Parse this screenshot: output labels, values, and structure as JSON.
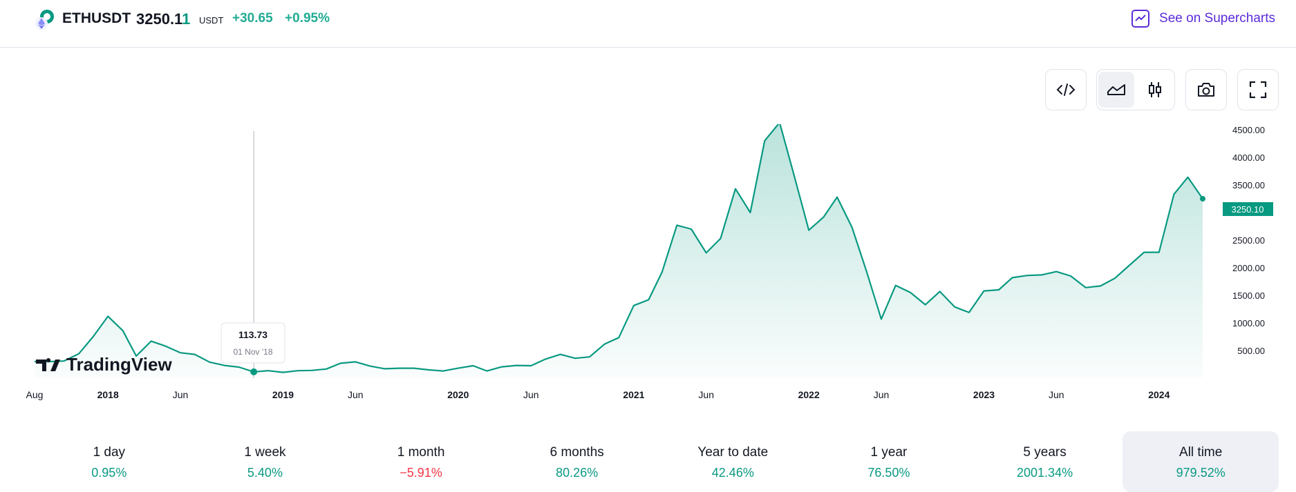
{
  "header": {
    "symbol": "ETHUSDT",
    "price_main": "3250.1",
    "price_last": "1",
    "currency": "USDT",
    "change": "+30.65",
    "change_pct": "+0.95%",
    "supercharts_label": "See on Supercharts"
  },
  "toolbar": {
    "embed_icon": "code-icon",
    "line_icon": "area-chart-icon",
    "candles_icon": "candlestick-icon",
    "snapshot_icon": "camera-icon",
    "fullscreen_icon": "fullscreen-icon"
  },
  "watermark": "TradingView",
  "tooltip": {
    "value": "113.73",
    "date": "01 Nov '18"
  },
  "current_price_label": "3250.10",
  "periods": [
    {
      "label": "1 day",
      "value": "0.95%",
      "sign": "pos"
    },
    {
      "label": "1 week",
      "value": "5.40%",
      "sign": "pos"
    },
    {
      "label": "1 month",
      "value": "−5.91%",
      "sign": "neg"
    },
    {
      "label": "6 months",
      "value": "80.26%",
      "sign": "pos"
    },
    {
      "label": "Year to date",
      "value": "42.46%",
      "sign": "pos"
    },
    {
      "label": "1 year",
      "value": "76.50%",
      "sign": "pos"
    },
    {
      "label": "5 years",
      "value": "2001.34%",
      "sign": "pos"
    },
    {
      "label": "All time",
      "value": "979.52%",
      "sign": "pos",
      "active": true
    }
  ],
  "colors": {
    "line": "#089981",
    "accent": "#5b2bd8",
    "negative": "#f23645"
  },
  "chart_data": {
    "type": "area",
    "x_ticks": [
      {
        "label": "Aug",
        "x": "2017-08-01",
        "bold": false
      },
      {
        "label": "2018",
        "x": "2018-01-01",
        "bold": true
      },
      {
        "label": "Jun",
        "x": "2018-06-01",
        "bold": false
      },
      {
        "label": "2019",
        "x": "2019-01-01",
        "bold": true
      },
      {
        "label": "Jun",
        "x": "2019-06-01",
        "bold": false
      },
      {
        "label": "2020",
        "x": "2020-01-01",
        "bold": true
      },
      {
        "label": "Jun",
        "x": "2020-06-01",
        "bold": false
      },
      {
        "label": "2021",
        "x": "2021-01-01",
        "bold": true
      },
      {
        "label": "Jun",
        "x": "2021-06-01",
        "bold": false
      },
      {
        "label": "2022",
        "x": "2022-01-01",
        "bold": true
      },
      {
        "label": "Jun",
        "x": "2022-06-01",
        "bold": false
      },
      {
        "label": "2023",
        "x": "2023-01-01",
        "bold": true
      },
      {
        "label": "Jun",
        "x": "2023-06-01",
        "bold": false
      },
      {
        "label": "2024",
        "x": "2024-01-01",
        "bold": true
      }
    ],
    "y_ticks": [
      "500.00",
      "1000.00",
      "1500.00",
      "2000.00",
      "2500.00",
      "3000.00",
      "3500.00",
      "4000.00",
      "4500.00"
    ],
    "ylim": [
      0,
      4600
    ],
    "x": [
      "2017-08-01",
      "2017-09-01",
      "2017-10-01",
      "2017-11-01",
      "2017-12-01",
      "2018-01-01",
      "2018-02-01",
      "2018-03-01",
      "2018-04-01",
      "2018-05-01",
      "2018-06-01",
      "2018-07-01",
      "2018-08-01",
      "2018-09-01",
      "2018-10-01",
      "2018-11-01",
      "2018-12-01",
      "2019-01-01",
      "2019-02-01",
      "2019-03-01",
      "2019-04-01",
      "2019-05-01",
      "2019-06-01",
      "2019-07-01",
      "2019-08-01",
      "2019-09-01",
      "2019-10-01",
      "2019-11-01",
      "2019-12-01",
      "2020-01-01",
      "2020-02-01",
      "2020-03-01",
      "2020-04-01",
      "2020-05-01",
      "2020-06-01",
      "2020-07-01",
      "2020-08-01",
      "2020-09-01",
      "2020-10-01",
      "2020-11-01",
      "2020-12-01",
      "2021-01-01",
      "2021-02-01",
      "2021-03-01",
      "2021-04-01",
      "2021-05-01",
      "2021-06-01",
      "2021-07-01",
      "2021-08-01",
      "2021-09-01",
      "2021-10-01",
      "2021-11-01",
      "2021-12-01",
      "2022-01-01",
      "2022-02-01",
      "2022-03-01",
      "2022-04-01",
      "2022-05-01",
      "2022-06-01",
      "2022-07-01",
      "2022-08-01",
      "2022-09-01",
      "2022-10-01",
      "2022-11-01",
      "2022-12-01",
      "2023-01-01",
      "2023-02-01",
      "2023-03-01",
      "2023-04-01",
      "2023-05-01",
      "2023-06-01",
      "2023-07-01",
      "2023-08-01",
      "2023-09-01",
      "2023-10-01",
      "2023-11-01",
      "2023-12-01",
      "2024-01-01",
      "2024-02-01",
      "2024-03-01",
      "2024-04-01"
    ],
    "values": [
      300,
      300,
      310,
      440,
      750,
      1120,
      860,
      400,
      670,
      580,
      460,
      430,
      290,
      230,
      200,
      113.73,
      135,
      105,
      135,
      140,
      165,
      270,
      295,
      220,
      170,
      180,
      180,
      150,
      130,
      180,
      225,
      130,
      205,
      230,
      225,
      345,
      430,
      360,
      385,
      615,
      735,
      1315,
      1420,
      1920,
      2770,
      2700,
      2270,
      2530,
      3430,
      3000,
      4300,
      4630,
      3680,
      2680,
      2920,
      3280,
      2730,
      1940,
      1070,
      1680,
      1550,
      1330,
      1570,
      1290,
      1190,
      1580,
      1600,
      1820,
      1860,
      1870,
      1930,
      1850,
      1640,
      1670,
      1810,
      2050,
      2280,
      2280,
      3330,
      3640,
      3250.1
    ],
    "highlight": {
      "x": "2018-11-01",
      "value": 113.73
    },
    "last": {
      "value": 3250.1
    }
  }
}
